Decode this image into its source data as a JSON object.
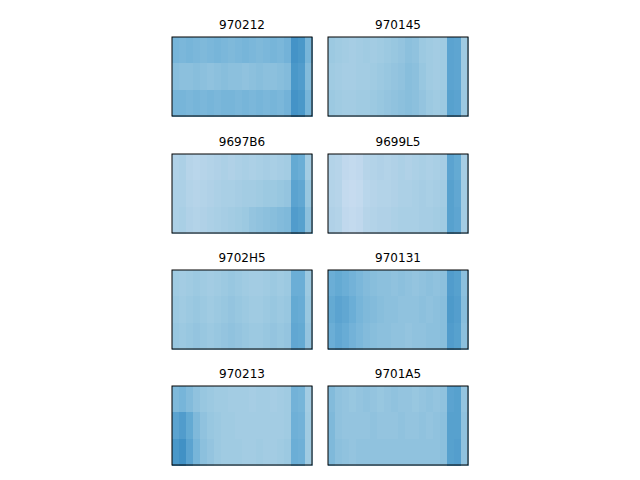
{
  "chart_data": {
    "type": "heatmap",
    "tick_labels": false,
    "zlim": [
      0,
      1
    ],
    "panels": [
      {
        "title": "970212",
        "cells": [
          [
            0.47,
            0.46,
            0.47,
            0.46,
            0.45,
            0.46,
            0.47,
            0.46,
            0.45,
            0.46,
            0.47,
            0.46,
            0.45,
            0.46,
            0.47,
            0.46,
            0.48,
            0.62,
            0.6,
            0.47
          ],
          [
            0.43,
            0.42,
            0.42,
            0.43,
            0.42,
            0.41,
            0.42,
            0.43,
            0.42,
            0.42,
            0.41,
            0.42,
            0.43,
            0.42,
            0.42,
            0.43,
            0.44,
            0.6,
            0.58,
            0.44
          ],
          [
            0.47,
            0.47,
            0.46,
            0.47,
            0.46,
            0.47,
            0.46,
            0.47,
            0.47,
            0.46,
            0.47,
            0.46,
            0.47,
            0.46,
            0.47,
            0.46,
            0.48,
            0.62,
            0.6,
            0.47
          ]
        ]
      },
      {
        "title": "970145",
        "cells": [
          [
            0.38,
            0.37,
            0.36,
            0.35,
            0.36,
            0.37,
            0.36,
            0.37,
            0.38,
            0.39,
            0.4,
            0.42,
            0.41,
            0.38,
            0.37,
            0.36,
            0.37,
            0.55,
            0.54,
            0.37
          ],
          [
            0.37,
            0.36,
            0.35,
            0.35,
            0.36,
            0.36,
            0.37,
            0.38,
            0.39,
            0.4,
            0.41,
            0.43,
            0.42,
            0.39,
            0.37,
            0.36,
            0.37,
            0.55,
            0.54,
            0.37
          ],
          [
            0.38,
            0.37,
            0.36,
            0.36,
            0.37,
            0.37,
            0.38,
            0.39,
            0.4,
            0.41,
            0.42,
            0.43,
            0.42,
            0.4,
            0.38,
            0.37,
            0.38,
            0.56,
            0.55,
            0.38
          ]
        ]
      },
      {
        "title": "9697B6",
        "cells": [
          [
            0.32,
            0.33,
            0.3,
            0.29,
            0.3,
            0.31,
            0.32,
            0.33,
            0.32,
            0.33,
            0.34,
            0.33,
            0.34,
            0.35,
            0.34,
            0.35,
            0.36,
            0.52,
            0.5,
            0.36
          ],
          [
            0.33,
            0.33,
            0.31,
            0.3,
            0.31,
            0.32,
            0.33,
            0.34,
            0.34,
            0.35,
            0.36,
            0.36,
            0.37,
            0.38,
            0.38,
            0.39,
            0.4,
            0.55,
            0.53,
            0.39
          ],
          [
            0.33,
            0.34,
            0.32,
            0.31,
            0.32,
            0.33,
            0.34,
            0.35,
            0.36,
            0.37,
            0.38,
            0.4,
            0.41,
            0.42,
            0.43,
            0.44,
            0.45,
            0.58,
            0.56,
            0.42
          ]
        ]
      },
      {
        "title": "9699L5",
        "cells": [
          [
            0.31,
            0.3,
            0.27,
            0.26,
            0.27,
            0.3,
            0.31,
            0.32,
            0.31,
            0.32,
            0.33,
            0.32,
            0.33,
            0.34,
            0.33,
            0.34,
            0.35,
            0.55,
            0.52,
            0.35
          ],
          [
            0.31,
            0.3,
            0.26,
            0.25,
            0.26,
            0.29,
            0.3,
            0.31,
            0.31,
            0.32,
            0.33,
            0.33,
            0.34,
            0.35,
            0.34,
            0.35,
            0.36,
            0.56,
            0.53,
            0.36
          ],
          [
            0.32,
            0.31,
            0.27,
            0.26,
            0.27,
            0.3,
            0.31,
            0.32,
            0.32,
            0.33,
            0.34,
            0.34,
            0.34,
            0.35,
            0.35,
            0.36,
            0.37,
            0.56,
            0.54,
            0.36
          ]
        ]
      },
      {
        "title": "9702H5",
        "cells": [
          [
            0.37,
            0.36,
            0.37,
            0.38,
            0.37,
            0.36,
            0.37,
            0.38,
            0.39,
            0.38,
            0.37,
            0.36,
            0.36,
            0.37,
            0.38,
            0.37,
            0.38,
            0.5,
            0.5,
            0.38
          ],
          [
            0.38,
            0.37,
            0.38,
            0.39,
            0.38,
            0.37,
            0.38,
            0.39,
            0.4,
            0.39,
            0.38,
            0.37,
            0.37,
            0.38,
            0.39,
            0.38,
            0.39,
            0.52,
            0.51,
            0.39
          ],
          [
            0.39,
            0.38,
            0.39,
            0.4,
            0.39,
            0.38,
            0.39,
            0.4,
            0.41,
            0.4,
            0.39,
            0.38,
            0.38,
            0.39,
            0.4,
            0.39,
            0.4,
            0.53,
            0.52,
            0.4
          ]
        ]
      },
      {
        "title": "970131",
        "cells": [
          [
            0.5,
            0.52,
            0.5,
            0.48,
            0.46,
            0.44,
            0.43,
            0.42,
            0.42,
            0.41,
            0.42,
            0.41,
            0.4,
            0.41,
            0.42,
            0.41,
            0.42,
            0.58,
            0.56,
            0.42
          ],
          [
            0.52,
            0.55,
            0.53,
            0.5,
            0.47,
            0.45,
            0.44,
            0.43,
            0.42,
            0.42,
            0.41,
            0.41,
            0.41,
            0.42,
            0.41,
            0.42,
            0.43,
            0.59,
            0.57,
            0.43
          ],
          [
            0.5,
            0.53,
            0.51,
            0.48,
            0.46,
            0.44,
            0.43,
            0.42,
            0.42,
            0.41,
            0.41,
            0.4,
            0.41,
            0.41,
            0.42,
            0.42,
            0.43,
            0.58,
            0.56,
            0.42
          ]
        ]
      },
      {
        "title": "970213",
        "cells": [
          [
            0.45,
            0.47,
            0.44,
            0.41,
            0.39,
            0.38,
            0.37,
            0.37,
            0.36,
            0.36,
            0.36,
            0.35,
            0.36,
            0.36,
            0.35,
            0.36,
            0.37,
            0.48,
            0.47,
            0.36
          ],
          [
            0.55,
            0.58,
            0.52,
            0.45,
            0.41,
            0.39,
            0.38,
            0.37,
            0.37,
            0.36,
            0.36,
            0.36,
            0.36,
            0.36,
            0.36,
            0.36,
            0.37,
            0.49,
            0.48,
            0.37
          ],
          [
            0.6,
            0.63,
            0.55,
            0.47,
            0.42,
            0.4,
            0.38,
            0.37,
            0.37,
            0.37,
            0.36,
            0.36,
            0.37,
            0.36,
            0.36,
            0.37,
            0.38,
            0.5,
            0.49,
            0.37
          ]
        ]
      },
      {
        "title": "9701A5",
        "cells": [
          [
            0.44,
            0.41,
            0.4,
            0.39,
            0.4,
            0.41,
            0.4,
            0.39,
            0.4,
            0.41,
            0.4,
            0.4,
            0.39,
            0.4,
            0.41,
            0.4,
            0.41,
            0.55,
            0.56,
            0.4
          ],
          [
            0.45,
            0.41,
            0.4,
            0.4,
            0.4,
            0.4,
            0.41,
            0.4,
            0.4,
            0.4,
            0.41,
            0.4,
            0.4,
            0.41,
            0.4,
            0.41,
            0.42,
            0.56,
            0.56,
            0.41
          ],
          [
            0.45,
            0.42,
            0.41,
            0.4,
            0.41,
            0.41,
            0.41,
            0.41,
            0.41,
            0.41,
            0.41,
            0.41,
            0.41,
            0.41,
            0.41,
            0.41,
            0.42,
            0.56,
            0.57,
            0.41
          ]
        ]
      }
    ]
  }
}
